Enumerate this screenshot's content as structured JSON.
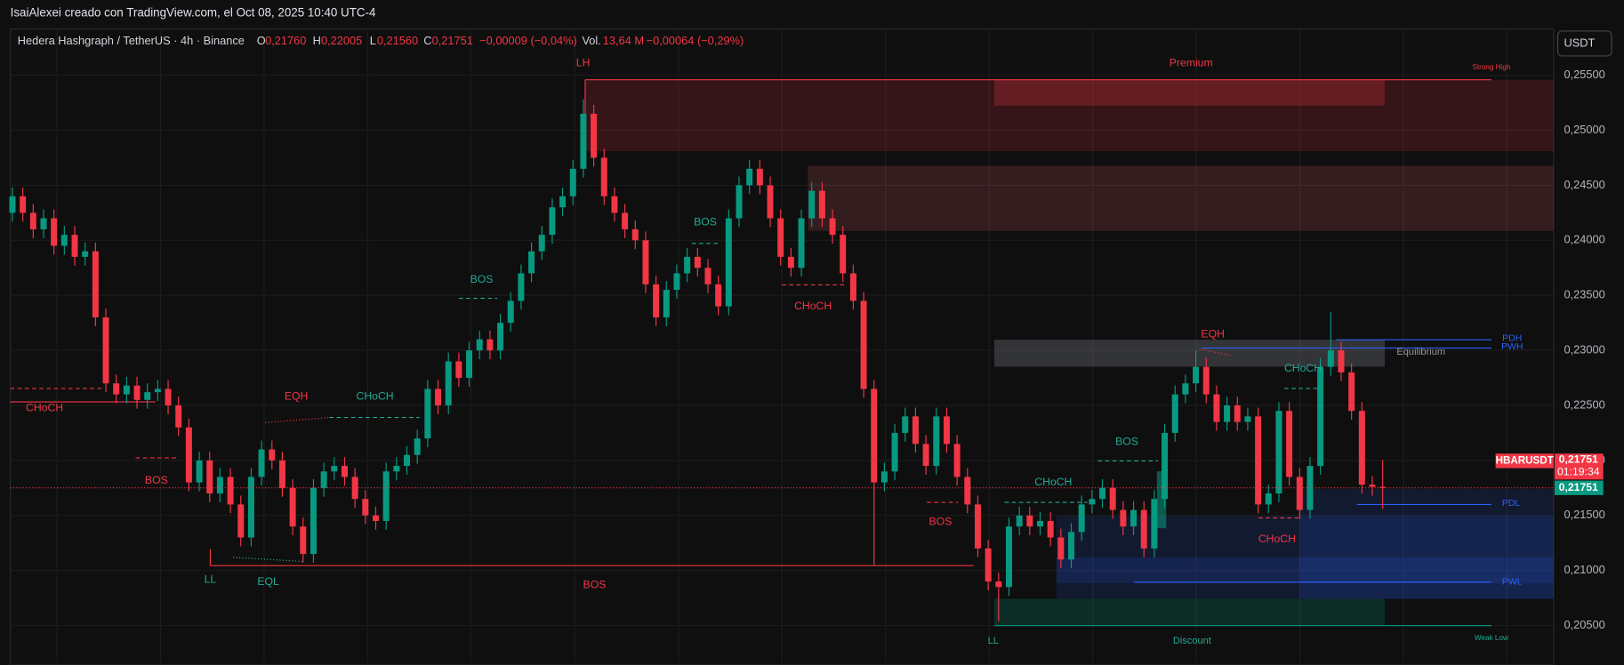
{
  "header": {
    "title": "IsaiAlexei creado con TradingView.com, el Oct 08, 2025 10:40 UTC-4",
    "currency_button": "USDT"
  },
  "legend": {
    "symbol": "Hedera Hashgraph / TetherUS · 4h · Binance",
    "open_label": "O",
    "open": "0,21760",
    "high_label": "H",
    "high": "0,22005",
    "low_label": "L",
    "low": "0,21560",
    "close_label": "C",
    "close": "0,21751",
    "change": "−0,00009 (−0,04%)",
    "volume_label": "Vol.",
    "volume": "13,64 M",
    "volume_change": "−0,00064 (−0,29%)"
  },
  "chart_data": {
    "type": "candlestick",
    "open": [
      0.2425,
      0.244,
      0.2425,
      0.241,
      0.242,
      0.2395,
      0.2405,
      0.2385,
      0.239,
      0.233,
      0.227,
      0.226,
      0.2268,
      0.2255,
      0.2262,
      0.2265,
      0.225,
      0.223,
      0.218,
      0.22,
      0.217,
      0.2185,
      0.216,
      0.213,
      0.2185,
      0.221,
      0.22,
      0.2175,
      0.214,
      0.2115,
      0.2175,
      0.219,
      0.2195,
      0.2185,
      0.2165,
      0.215,
      0.2145,
      0.219,
      0.2195,
      0.2205,
      0.222,
      0.2265,
      0.225,
      0.229,
      0.2275,
      0.23,
      0.231,
      0.23,
      0.2325,
      0.2345,
      0.237,
      0.239,
      0.2405,
      0.243,
      0.244,
      0.2465,
      0.2515,
      0.2475,
      0.244,
      0.2425,
      0.241,
      0.24,
      0.236,
      0.233,
      0.2355,
      0.237,
      0.2385,
      0.2375,
      0.236,
      0.234,
      0.242,
      0.245,
      0.2465,
      0.245,
      0.242,
      0.2385,
      0.2375,
      0.242,
      0.2445,
      0.242,
      0.2405,
      0.237,
      0.2345,
      0.2265,
      0.218,
      0.219,
      0.2225,
      0.224,
      0.2215,
      0.2195,
      0.224,
      0.2215,
      0.2185,
      0.216,
      0.212,
      0.209,
      0.2085,
      0.214,
      0.215,
      0.214,
      0.2145,
      0.213,
      0.211,
      0.2135,
      0.216,
      0.2165,
      0.2175,
      0.2155,
      0.214,
      0.2155,
      0.212,
      0.2165,
      0.2225,
      0.226,
      0.227,
      0.2285,
      0.226,
      0.2235,
      0.225,
      0.2235,
      0.224,
      0.216,
      0.217,
      0.2245,
      0.2185,
      0.2155,
      0.2195,
      0.2285,
      0.23,
      0.228,
      0.2245,
      0.2178,
      0.2176
    ],
    "high": [
      0.2448,
      0.2448,
      0.2433,
      0.2428,
      0.2428,
      0.2413,
      0.2413,
      0.2398,
      0.2398,
      0.2338,
      0.2278,
      0.2276,
      0.2276,
      0.227,
      0.2273,
      0.2273,
      0.2258,
      0.2238,
      0.2208,
      0.2208,
      0.2193,
      0.2193,
      0.2168,
      0.2193,
      0.2218,
      0.2218,
      0.2208,
      0.2183,
      0.2148,
      0.2183,
      0.2198,
      0.2203,
      0.2203,
      0.2193,
      0.2173,
      0.2158,
      0.2198,
      0.2203,
      0.2213,
      0.2228,
      0.2273,
      0.2273,
      0.2298,
      0.2298,
      0.2308,
      0.2318,
      0.2318,
      0.2333,
      0.2353,
      0.2378,
      0.2398,
      0.2413,
      0.2438,
      0.2448,
      0.2473,
      0.2528,
      0.2523,
      0.2483,
      0.2448,
      0.2433,
      0.2418,
      0.2408,
      0.2368,
      0.2363,
      0.2378,
      0.2393,
      0.2393,
      0.2383,
      0.2368,
      0.2428,
      0.2458,
      0.2473,
      0.2473,
      0.2458,
      0.2428,
      0.2393,
      0.2428,
      0.2453,
      0.2453,
      0.2428,
      0.2413,
      0.2378,
      0.2353,
      0.2273,
      0.2198,
      0.2233,
      0.2248,
      0.2248,
      0.2223,
      0.2248,
      0.2248,
      0.2223,
      0.2193,
      0.2168,
      0.2128,
      0.2098,
      0.2148,
      0.2158,
      0.2158,
      0.2153,
      0.2153,
      0.2138,
      0.2143,
      0.2168,
      0.2173,
      0.2183,
      0.2183,
      0.2163,
      0.2163,
      0.2163,
      0.2173,
      0.2233,
      0.2268,
      0.2278,
      0.23,
      0.2293,
      0.2268,
      0.2258,
      0.2258,
      0.2248,
      0.2248,
      0.2178,
      0.2253,
      0.2253,
      0.2193,
      0.2203,
      0.2293,
      0.2335,
      0.2308,
      0.2288,
      0.2253,
      0.2186,
      0.22005
    ],
    "low": [
      0.2417,
      0.2417,
      0.2402,
      0.2402,
      0.2387,
      0.2387,
      0.2377,
      0.2377,
      0.2322,
      0.2262,
      0.2252,
      0.2252,
      0.2247,
      0.2247,
      0.2254,
      0.2242,
      0.2222,
      0.2172,
      0.2172,
      0.2162,
      0.2162,
      0.2152,
      0.2122,
      0.2122,
      0.2177,
      0.2192,
      0.2167,
      0.2132,
      0.2107,
      0.2107,
      0.2167,
      0.2182,
      0.2177,
      0.2157,
      0.2142,
      0.2137,
      0.2137,
      0.2182,
      0.2187,
      0.2197,
      0.2212,
      0.2242,
      0.2242,
      0.2267,
      0.2267,
      0.2292,
      0.2292,
      0.2292,
      0.2317,
      0.2337,
      0.2362,
      0.2382,
      0.2397,
      0.2422,
      0.2432,
      0.2457,
      0.2467,
      0.2432,
      0.2417,
      0.2402,
      0.2392,
      0.2352,
      0.2322,
      0.2322,
      0.2347,
      0.2362,
      0.2367,
      0.2352,
      0.2332,
      0.2332,
      0.2412,
      0.2442,
      0.2442,
      0.2412,
      0.2377,
      0.2367,
      0.2367,
      0.2412,
      0.2412,
      0.2397,
      0.2362,
      0.2337,
      0.2257,
      0.2105,
      0.2172,
      0.2182,
      0.2217,
      0.2207,
      0.2187,
      0.2187,
      0.2207,
      0.2177,
      0.2152,
      0.2112,
      0.2082,
      0.2054,
      0.2077,
      0.2132,
      0.2132,
      0.2132,
      0.2122,
      0.2102,
      0.2102,
      0.2127,
      0.2152,
      0.2157,
      0.2147,
      0.2132,
      0.2132,
      0.2112,
      0.2112,
      0.2157,
      0.2217,
      0.2252,
      0.2262,
      0.2252,
      0.2227,
      0.2227,
      0.2227,
      0.2227,
      0.2152,
      0.2152,
      0.2162,
      0.2177,
      0.2147,
      0.2147,
      0.2187,
      0.2277,
      0.2272,
      0.2237,
      0.217,
      0.2168,
      0.2156
    ],
    "close": [
      0.244,
      0.2425,
      0.241,
      0.242,
      0.2395,
      0.2405,
      0.2385,
      0.239,
      0.233,
      0.227,
      0.226,
      0.2268,
      0.2255,
      0.2262,
      0.2265,
      0.225,
      0.223,
      0.218,
      0.22,
      0.217,
      0.2185,
      0.216,
      0.213,
      0.2185,
      0.221,
      0.22,
      0.2175,
      0.214,
      0.2115,
      0.2175,
      0.219,
      0.2195,
      0.2185,
      0.2165,
      0.215,
      0.2145,
      0.219,
      0.2195,
      0.2205,
      0.222,
      0.2265,
      0.225,
      0.229,
      0.2275,
      0.23,
      0.231,
      0.23,
      0.2325,
      0.2345,
      0.237,
      0.239,
      0.2405,
      0.243,
      0.244,
      0.2465,
      0.2515,
      0.2475,
      0.244,
      0.2425,
      0.241,
      0.24,
      0.236,
      0.233,
      0.2355,
      0.237,
      0.2385,
      0.2375,
      0.236,
      0.234,
      0.242,
      0.245,
      0.2465,
      0.245,
      0.242,
      0.2385,
      0.2375,
      0.242,
      0.2445,
      0.242,
      0.2405,
      0.237,
      0.2345,
      0.2265,
      0.218,
      0.219,
      0.2225,
      0.224,
      0.2215,
      0.2195,
      0.224,
      0.2215,
      0.2185,
      0.216,
      0.212,
      0.209,
      0.2085,
      0.214,
      0.215,
      0.214,
      0.2145,
      0.213,
      0.211,
      0.2135,
      0.216,
      0.2165,
      0.2175,
      0.2155,
      0.214,
      0.2155,
      0.212,
      0.2165,
      0.2225,
      0.226,
      0.227,
      0.2285,
      0.226,
      0.2235,
      0.225,
      0.2235,
      0.224,
      0.216,
      0.217,
      0.2245,
      0.2185,
      0.2155,
      0.2195,
      0.2285,
      0.23,
      0.228,
      0.2245,
      0.2178,
      0.2176,
      0.21751
    ],
    "up_color": "#089981",
    "down_color": "#f23645",
    "ylim": [
      0.2016,
      0.2592
    ],
    "yticks": [
      {
        "value": 0.205,
        "label": "0,20500"
      },
      {
        "value": 0.21,
        "label": "0,21000"
      },
      {
        "value": 0.215,
        "label": "0,21500"
      },
      {
        "value": 0.22,
        "label": "0,22000"
      },
      {
        "value": 0.225,
        "label": "0,22500"
      },
      {
        "value": 0.23,
        "label": "0,23000"
      },
      {
        "value": 0.235,
        "label": "0,23500"
      },
      {
        "value": 0.24,
        "label": "0,24000"
      },
      {
        "value": 0.245,
        "label": "0,24500"
      },
      {
        "value": 0.25,
        "label": "0,25000"
      },
      {
        "value": 0.255,
        "label": "0,25500"
      }
    ],
    "grid": true,
    "annotations": [
      "LH",
      "Premium",
      "Strong High",
      "BOS",
      "BOS",
      "CHoCH",
      "EQH",
      "CHoCH",
      "CHoCH",
      "BOS",
      "LL",
      "EQL",
      "BOS",
      "BOS",
      "CHoCH",
      "BOS",
      "EQH",
      "CHoCH",
      "Equilibrium",
      "PDH",
      "PWH",
      "PDL",
      "CHoCH",
      "PWL",
      "LL",
      "Discount",
      "Weak Low"
    ],
    "price_labels": {
      "symbol": "HBARUSDT",
      "price": "0,21751",
      "countdown": "01:19:34",
      "price_tag": "0,21751"
    }
  }
}
